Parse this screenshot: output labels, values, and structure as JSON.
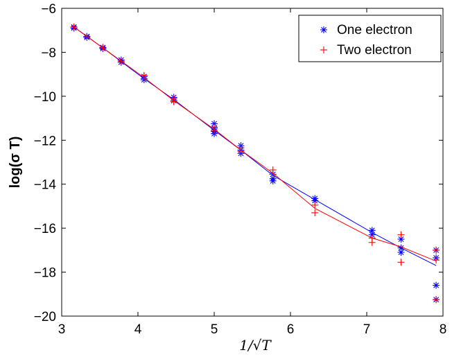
{
  "chart_data": {
    "type": "scatter",
    "title": "",
    "xlabel": "1/√T",
    "ylabel": "log(σ T)",
    "xlim": [
      3,
      8
    ],
    "ylim": [
      -20,
      -6
    ],
    "xticks": [
      3,
      4,
      5,
      6,
      7,
      8
    ],
    "yticks": [
      -20,
      -18,
      -16,
      -14,
      -12,
      -10,
      -8,
      -6
    ],
    "xtick_labels": [
      "3",
      "4",
      "5",
      "6",
      "7",
      "8"
    ],
    "ytick_labels": [
      "−20",
      "−18",
      "−16",
      "−14",
      "−12",
      "−10",
      "−8",
      "−6"
    ],
    "grid": false,
    "legend_position": "top-right",
    "series": [
      {
        "name": "One electron",
        "color": "#0000ff",
        "marker": "asterisk",
        "points": [
          [
            3.16,
            -6.85
          ],
          [
            3.16,
            -6.9
          ],
          [
            3.33,
            -7.28
          ],
          [
            3.33,
            -7.32
          ],
          [
            3.54,
            -7.78
          ],
          [
            3.54,
            -7.83
          ],
          [
            3.78,
            -8.35
          ],
          [
            3.78,
            -8.45
          ],
          [
            4.08,
            -9.1
          ],
          [
            4.08,
            -9.25
          ],
          [
            4.47,
            -10.05
          ],
          [
            4.47,
            -10.2
          ],
          [
            5.0,
            -11.25
          ],
          [
            5.0,
            -11.45
          ],
          [
            5.0,
            -11.6
          ],
          [
            5.0,
            -11.7
          ],
          [
            5.35,
            -12.25
          ],
          [
            5.35,
            -12.45
          ],
          [
            5.35,
            -12.6
          ],
          [
            5.77,
            -13.55
          ],
          [
            5.77,
            -13.75
          ],
          [
            5.77,
            -13.85
          ],
          [
            6.32,
            -14.65
          ],
          [
            6.32,
            -14.75
          ],
          [
            7.07,
            -16.1
          ],
          [
            7.07,
            -16.3
          ],
          [
            7.45,
            -16.5
          ],
          [
            7.45,
            -16.9
          ],
          [
            7.45,
            -17.1
          ],
          [
            7.91,
            -17.0
          ],
          [
            7.91,
            -17.35
          ],
          [
            7.91,
            -18.6
          ],
          [
            7.91,
            -19.25
          ]
        ],
        "fit_line": [
          [
            3.16,
            -6.85
          ],
          [
            3.54,
            -7.8
          ],
          [
            4.08,
            -9.2
          ],
          [
            4.47,
            -10.15
          ],
          [
            5.0,
            -11.55
          ],
          [
            5.35,
            -12.45
          ],
          [
            5.77,
            -13.6
          ],
          [
            6.32,
            -14.7
          ],
          [
            7.07,
            -16.2
          ],
          [
            7.45,
            -16.9
          ],
          [
            7.91,
            -17.7
          ]
        ]
      },
      {
        "name": "Two electron",
        "color": "#ff0000",
        "marker": "plus",
        "points": [
          [
            3.16,
            -6.85
          ],
          [
            3.33,
            -7.3
          ],
          [
            3.54,
            -7.8
          ],
          [
            3.78,
            -8.4
          ],
          [
            4.08,
            -9.05
          ],
          [
            4.08,
            -9.2
          ],
          [
            4.47,
            -10.1
          ],
          [
            4.47,
            -10.25
          ],
          [
            5.0,
            -11.4
          ],
          [
            5.0,
            -11.55
          ],
          [
            5.35,
            -12.35
          ],
          [
            5.35,
            -12.5
          ],
          [
            5.77,
            -13.35
          ],
          [
            5.77,
            -13.55
          ],
          [
            6.32,
            -14.95
          ],
          [
            6.32,
            -15.3
          ],
          [
            7.07,
            -16.45
          ],
          [
            7.07,
            -16.65
          ],
          [
            7.45,
            -16.3
          ],
          [
            7.45,
            -17.55
          ],
          [
            7.91,
            -17.0
          ],
          [
            7.91,
            -17.45
          ],
          [
            7.91,
            -19.25
          ]
        ],
        "fit_line": [
          [
            3.16,
            -6.85
          ],
          [
            3.54,
            -7.8
          ],
          [
            4.08,
            -9.15
          ],
          [
            4.47,
            -10.2
          ],
          [
            5.0,
            -11.5
          ],
          [
            5.35,
            -12.45
          ],
          [
            5.77,
            -13.5
          ],
          [
            6.32,
            -15.1
          ],
          [
            7.07,
            -16.45
          ],
          [
            7.45,
            -16.85
          ],
          [
            7.91,
            -17.5
          ]
        ]
      }
    ]
  }
}
